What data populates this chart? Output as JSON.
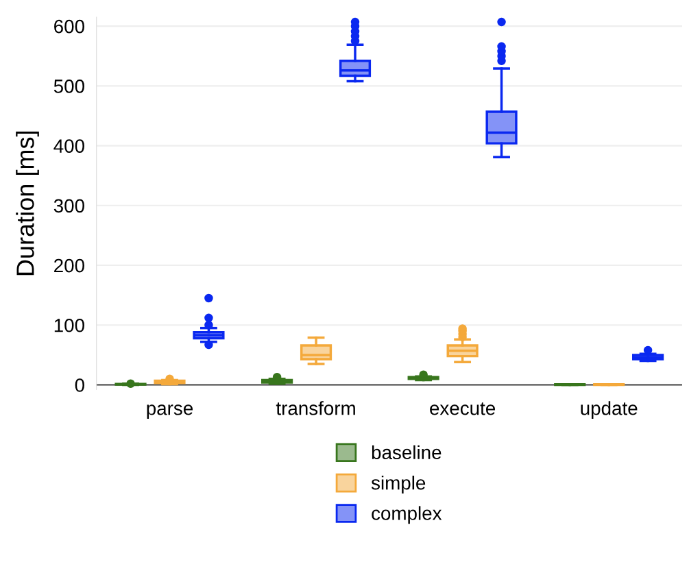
{
  "chart_data": {
    "type": "box",
    "ylabel": "Duration [ms]",
    "categories": [
      "parse",
      "transform",
      "execute",
      "update"
    ],
    "ylim": [
      -8,
      615
    ],
    "yticks": [
      0,
      100,
      200,
      300,
      400,
      500,
      600
    ],
    "grid": "y",
    "legend": "bottom",
    "series": [
      {
        "name": "baseline",
        "color": "#38761d",
        "boxes": [
          {
            "low": 0,
            "q1": 0.5,
            "median": 1,
            "q3": 1.5,
            "high": 2,
            "outliers": [
              2
            ]
          },
          {
            "low": 2,
            "q1": 4,
            "median": 6,
            "q3": 8,
            "high": 10,
            "outliers": [
              13
            ]
          },
          {
            "low": 8,
            "q1": 10,
            "median": 11,
            "q3": 13,
            "high": 14,
            "outliers": [
              17
            ]
          },
          {
            "low": 0,
            "q1": 0,
            "median": 0.5,
            "q3": 1,
            "high": 1
          }
        ]
      },
      {
        "name": "simple",
        "color": "#f4a93b",
        "boxes": [
          {
            "low": 1,
            "q1": 3,
            "median": 5,
            "q3": 7,
            "high": 8,
            "outliers": [
              10
            ]
          },
          {
            "low": 35,
            "q1": 43,
            "median": 50,
            "q3": 66,
            "high": 79
          },
          {
            "low": 38,
            "q1": 48,
            "median": 57,
            "q3": 66,
            "high": 76,
            "outliers": [
              80,
              85,
              90,
              94
            ]
          },
          {
            "low": 0,
            "q1": 0,
            "median": 0.5,
            "q3": 1,
            "high": 1
          }
        ]
      },
      {
        "name": "complex",
        "color": "#0a28f0",
        "boxes": [
          {
            "low": 72,
            "q1": 78,
            "median": 83,
            "q3": 88,
            "high": 95,
            "outliers": [
              67,
              100,
              112,
              145
            ]
          },
          {
            "low": 508,
            "q1": 517,
            "median": 526,
            "q3": 542,
            "high": 569,
            "outliers": [
              575,
              583,
              591,
              600,
              607
            ]
          },
          {
            "low": 381,
            "q1": 404,
            "median": 422,
            "q3": 457,
            "high": 529,
            "outliers": [
              542,
              550,
              558,
              566,
              607
            ]
          },
          {
            "low": 40,
            "q1": 43,
            "median": 46,
            "q3": 50,
            "high": 52,
            "outliers": [
              58
            ]
          }
        ]
      }
    ]
  }
}
